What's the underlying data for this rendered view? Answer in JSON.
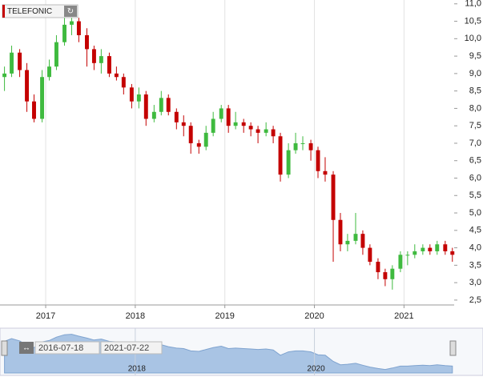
{
  "chart_data": {
    "type": "candlestick",
    "title": "TELEFONIC",
    "up_color": "#3fba3f",
    "down_color": "#c40000",
    "x": [
      2016.54,
      2016.62,
      2016.71,
      2016.79,
      2016.87,
      2016.96,
      2017.04,
      2017.12,
      2017.21,
      2017.29,
      2017.37,
      2017.46,
      2017.54,
      2017.62,
      2017.71,
      2017.79,
      2017.87,
      2017.96,
      2018.04,
      2018.12,
      2018.21,
      2018.29,
      2018.37,
      2018.46,
      2018.54,
      2018.62,
      2018.71,
      2018.79,
      2018.87,
      2018.96,
      2019.04,
      2019.12,
      2019.21,
      2019.29,
      2019.37,
      2019.46,
      2019.54,
      2019.62,
      2019.71,
      2019.79,
      2019.87,
      2019.96,
      2020.04,
      2020.12,
      2020.21,
      2020.29,
      2020.37,
      2020.46,
      2020.54,
      2020.62,
      2020.71,
      2020.79,
      2020.87,
      2020.96,
      2021.04,
      2021.12,
      2021.21,
      2021.29,
      2021.37,
      2021.46,
      2021.54
    ],
    "open": [
      8.9,
      9.0,
      9.6,
      9.1,
      8.2,
      7.7,
      8.9,
      9.2,
      9.9,
      10.4,
      10.5,
      10.1,
      9.7,
      9.3,
      9.5,
      9.0,
      8.9,
      8.6,
      8.2,
      8.4,
      7.7,
      7.9,
      8.3,
      7.9,
      7.6,
      7.5,
      7.0,
      6.9,
      7.3,
      7.7,
      8.0,
      7.5,
      7.6,
      7.5,
      7.4,
      7.3,
      7.4,
      7.2,
      6.1,
      6.8,
      7.0,
      7.0,
      6.8,
      6.2,
      6.1,
      4.8,
      4.1,
      4.2,
      4.4,
      4.0,
      3.6,
      3.3,
      3.1,
      3.4,
      3.8,
      3.8,
      3.9,
      4.0,
      3.9,
      4.1,
      3.9
    ],
    "high": [
      9.2,
      9.8,
      9.7,
      9.3,
      8.4,
      9.1,
      9.4,
      10.1,
      10.6,
      10.7,
      10.6,
      10.3,
      9.8,
      9.7,
      9.6,
      9.2,
      9.0,
      8.7,
      8.6,
      8.5,
      8.1,
      8.5,
      8.4,
      8.0,
      7.8,
      7.6,
      7.1,
      7.5,
      7.9,
      8.1,
      8.1,
      7.9,
      7.7,
      7.6,
      7.5,
      7.6,
      7.5,
      7.3,
      7.0,
      7.3,
      7.2,
      7.1,
      6.9,
      6.6,
      6.2,
      5.0,
      4.4,
      5.0,
      4.5,
      4.1,
      3.7,
      3.4,
      3.5,
      3.9,
      3.9,
      4.1,
      4.1,
      4.1,
      4.2,
      4.2,
      4.0
    ],
    "low": [
      8.5,
      8.9,
      8.9,
      7.9,
      7.6,
      7.6,
      8.8,
      9.1,
      9.8,
      10.1,
      9.9,
      9.2,
      9.1,
      9.0,
      8.9,
      8.8,
      8.4,
      8.0,
      8.0,
      7.5,
      7.6,
      7.8,
      7.8,
      7.4,
      7.2,
      6.7,
      6.7,
      6.8,
      7.2,
      7.6,
      7.3,
      7.4,
      7.3,
      7.2,
      7.0,
      7.2,
      7.0,
      5.9,
      6.0,
      6.7,
      6.8,
      6.5,
      6.0,
      5.9,
      3.6,
      3.9,
      3.9,
      4.1,
      3.8,
      3.5,
      3.1,
      2.9,
      2.8,
      3.3,
      3.5,
      3.7,
      3.8,
      3.8,
      3.8,
      3.8,
      3.6
    ],
    "close": [
      9.0,
      9.6,
      9.1,
      8.2,
      7.7,
      8.9,
      9.2,
      9.9,
      10.4,
      10.5,
      10.1,
      9.7,
      9.3,
      9.5,
      9.0,
      8.9,
      8.6,
      8.2,
      8.4,
      7.7,
      7.9,
      8.3,
      7.9,
      7.6,
      7.5,
      7.0,
      6.9,
      7.3,
      7.7,
      8.0,
      7.5,
      7.6,
      7.5,
      7.4,
      7.3,
      7.4,
      7.2,
      6.1,
      6.8,
      7.0,
      7.0,
      6.8,
      6.2,
      6.1,
      4.8,
      4.1,
      4.2,
      4.4,
      4.0,
      3.6,
      3.3,
      3.1,
      3.4,
      3.8,
      3.8,
      3.9,
      4.0,
      3.9,
      4.1,
      3.9,
      3.8
    ],
    "xlim": [
      2016.49,
      2021.56
    ],
    "xticks": [
      2017,
      2018,
      2019,
      2020,
      2021
    ],
    "ylim": [
      2.36,
      11.11
    ],
    "yticks": [
      {
        "value": 2.5,
        "label": "2,5"
      },
      {
        "value": 3,
        "label": "3,0"
      },
      {
        "value": 3.5,
        "label": "3,5"
      },
      {
        "value": 4,
        "label": "4,0"
      },
      {
        "value": 4.5,
        "label": "4,5"
      },
      {
        "value": 5,
        "label": "5,0"
      },
      {
        "value": 5.5,
        "label": "5,5"
      },
      {
        "value": 6,
        "label": "6,0"
      },
      {
        "value": 6.5,
        "label": "6,5"
      },
      {
        "value": 7,
        "label": "7,0"
      },
      {
        "value": 7.5,
        "label": "7,5"
      },
      {
        "value": 8,
        "label": "8,0"
      },
      {
        "value": 8.5,
        "label": "8,5"
      },
      {
        "value": 9,
        "label": "9,0"
      },
      {
        "value": 9.5,
        "label": "9,5"
      },
      {
        "value": 10,
        "label": "10,0"
      },
      {
        "value": 10.5,
        "label": "10,5"
      },
      {
        "value": 11,
        "label": "11,0"
      }
    ],
    "grid": true,
    "navigator": {
      "from": "2016-07-18",
      "to": "2021-07-22",
      "xticks": [
        2018,
        2020
      ]
    }
  }
}
